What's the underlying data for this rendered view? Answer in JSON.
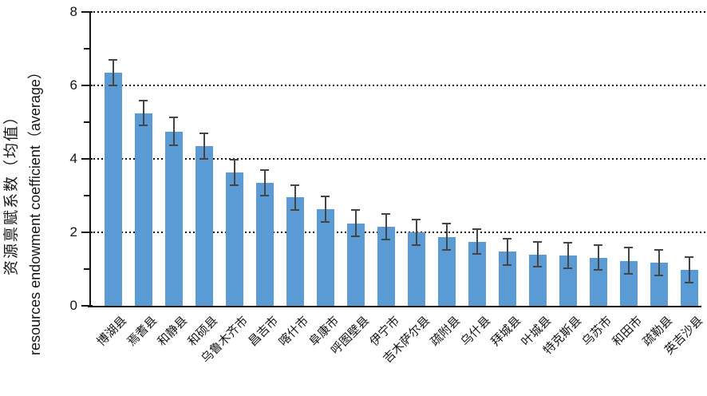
{
  "chart_data": {
    "type": "bar",
    "title": "",
    "xlabel": "",
    "ylabel_zh": "资源禀赋系数（均值）",
    "ylabel_en": "resources endowment coefficient（average）",
    "categories": [
      "博湖县",
      "焉耆县",
      "和静县",
      "和硕县",
      "乌鲁木齐市",
      "昌吉市",
      "喀什市",
      "阜康市",
      "呼图壁县",
      "伊宁市",
      "吉木萨尔县",
      "疏附县",
      "乌什县",
      "拜城县",
      "叶城县",
      "特克斯县",
      "乌苏市",
      "和田市",
      "疏勒县",
      "英吉沙县"
    ],
    "values": [
      6.35,
      5.25,
      4.75,
      4.35,
      3.63,
      3.35,
      2.95,
      2.63,
      2.25,
      2.15,
      2.0,
      1.88,
      1.75,
      1.47,
      1.4,
      1.37,
      1.31,
      1.22,
      1.18,
      0.98
    ],
    "errors": [
      0.34,
      0.33,
      0.37,
      0.35,
      0.35,
      0.34,
      0.34,
      0.34,
      0.36,
      0.34,
      0.35,
      0.35,
      0.33,
      0.36,
      0.34,
      0.34,
      0.34,
      0.36,
      0.35,
      0.35
    ],
    "error_bars": true,
    "ylim": [
      0,
      8
    ],
    "yticks_major": [
      0,
      2,
      4,
      6,
      8
    ],
    "yticks_minor": [
      1,
      3,
      5,
      7
    ],
    "gridline_values": [
      2,
      4,
      6,
      8
    ],
    "grid_style": "dotted",
    "legend": "none",
    "colors": {
      "bar": "#5B9BD5",
      "error_bar": "#454545",
      "axis": "#141414",
      "text": "#151515"
    }
  }
}
